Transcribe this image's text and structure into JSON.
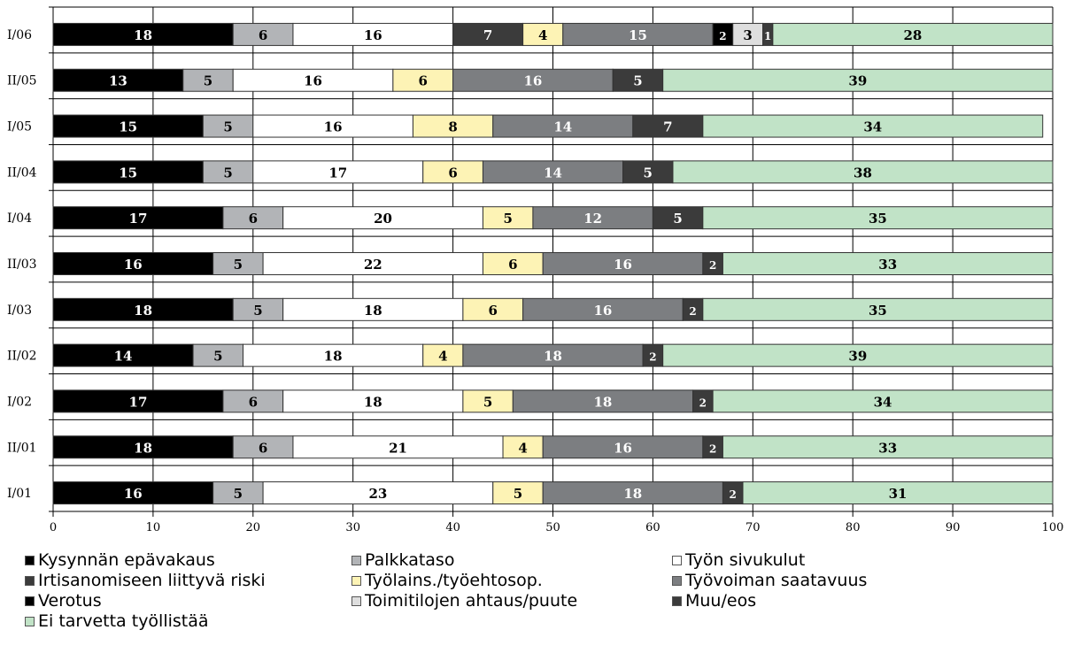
{
  "chart_data": {
    "type": "bar",
    "orientation": "horizontal",
    "stacked": true,
    "title": "",
    "xlabel": "",
    "ylabel": "",
    "xlim": [
      0,
      100
    ],
    "xticks": [
      "0",
      "10",
      "20",
      "30",
      "40",
      "50",
      "60",
      "70",
      "80",
      "90",
      "100"
    ],
    "grid": true,
    "legend_position": "bottom",
    "categories": [
      "I/06",
      "II/05",
      "I/05",
      "II/04",
      "I/04",
      "II/03",
      "I/03",
      "II/02",
      "I/02",
      "II/01",
      "I/01"
    ],
    "series": [
      {
        "name": "Kysynnän epävakaus",
        "color": "#000000",
        "values": [
          18,
          13,
          15,
          15,
          17,
          16,
          18,
          14,
          17,
          18,
          16
        ]
      },
      {
        "name": "Palkkataso",
        "color": "#b2b4b7",
        "values": [
          6,
          5,
          5,
          5,
          6,
          5,
          5,
          5,
          6,
          6,
          5
        ]
      },
      {
        "name": "Työn sivukulut",
        "color": "#ffffff",
        "values": [
          16,
          16,
          16,
          17,
          20,
          22,
          18,
          18,
          18,
          21,
          23
        ]
      },
      {
        "name": "Irtisanomiseen liittyvä riski",
        "color": "#3b3b3b",
        "values": [
          7,
          null,
          null,
          null,
          null,
          null,
          null,
          null,
          null,
          null,
          null
        ]
      },
      {
        "name": "Työlains./työehtosop.",
        "color": "#fdf3b5",
        "values": [
          4,
          6,
          8,
          6,
          5,
          6,
          6,
          4,
          5,
          4,
          5
        ]
      },
      {
        "name": "Työvoiman saatavuus",
        "color": "#7c7e81",
        "values": [
          15,
          16,
          14,
          14,
          12,
          16,
          16,
          18,
          18,
          16,
          18
        ]
      },
      {
        "name": "Verotus",
        "color": "#000000",
        "values": [
          2,
          null,
          null,
          null,
          null,
          null,
          null,
          null,
          null,
          null,
          null
        ]
      },
      {
        "name": "Toimitilojen ahtaus/puute",
        "color": "#dedede",
        "values": [
          3,
          null,
          null,
          null,
          null,
          null,
          null,
          null,
          null,
          null,
          null
        ]
      },
      {
        "name": "Muu/eos",
        "color": "#3b3b3b",
        "values": [
          1,
          5,
          7,
          5,
          5,
          2,
          2,
          2,
          2,
          2,
          2
        ]
      },
      {
        "name": "Ei tarvetta työllistää",
        "color": "#c1e3c7",
        "values": [
          28,
          39,
          34,
          38,
          35,
          33,
          35,
          39,
          34,
          33,
          31
        ]
      }
    ]
  },
  "legend": [
    {
      "label": "Kysynnän epävakaus",
      "color": "#000000"
    },
    {
      "label": "Palkkataso",
      "color": "#b2b4b7"
    },
    {
      "label": "Työn sivukulut",
      "color": "#ffffff"
    },
    {
      "label": "Irtisanomiseen liittyvä riski",
      "color": "#3b3b3b"
    },
    {
      "label": "Työlains./työehtosop.",
      "color": "#fdf3b5"
    },
    {
      "label": "Työvoiman saatavuus",
      "color": "#7c7e81"
    },
    {
      "label": "Verotus",
      "color": "#000000"
    },
    {
      "label": "Toimitilojen ahtaus/puute",
      "color": "#dedede"
    },
    {
      "label": "Muu/eos",
      "color": "#3b3b3b"
    },
    {
      "label": "Ei tarvetta työllistää",
      "color": "#c1e3c7"
    }
  ]
}
